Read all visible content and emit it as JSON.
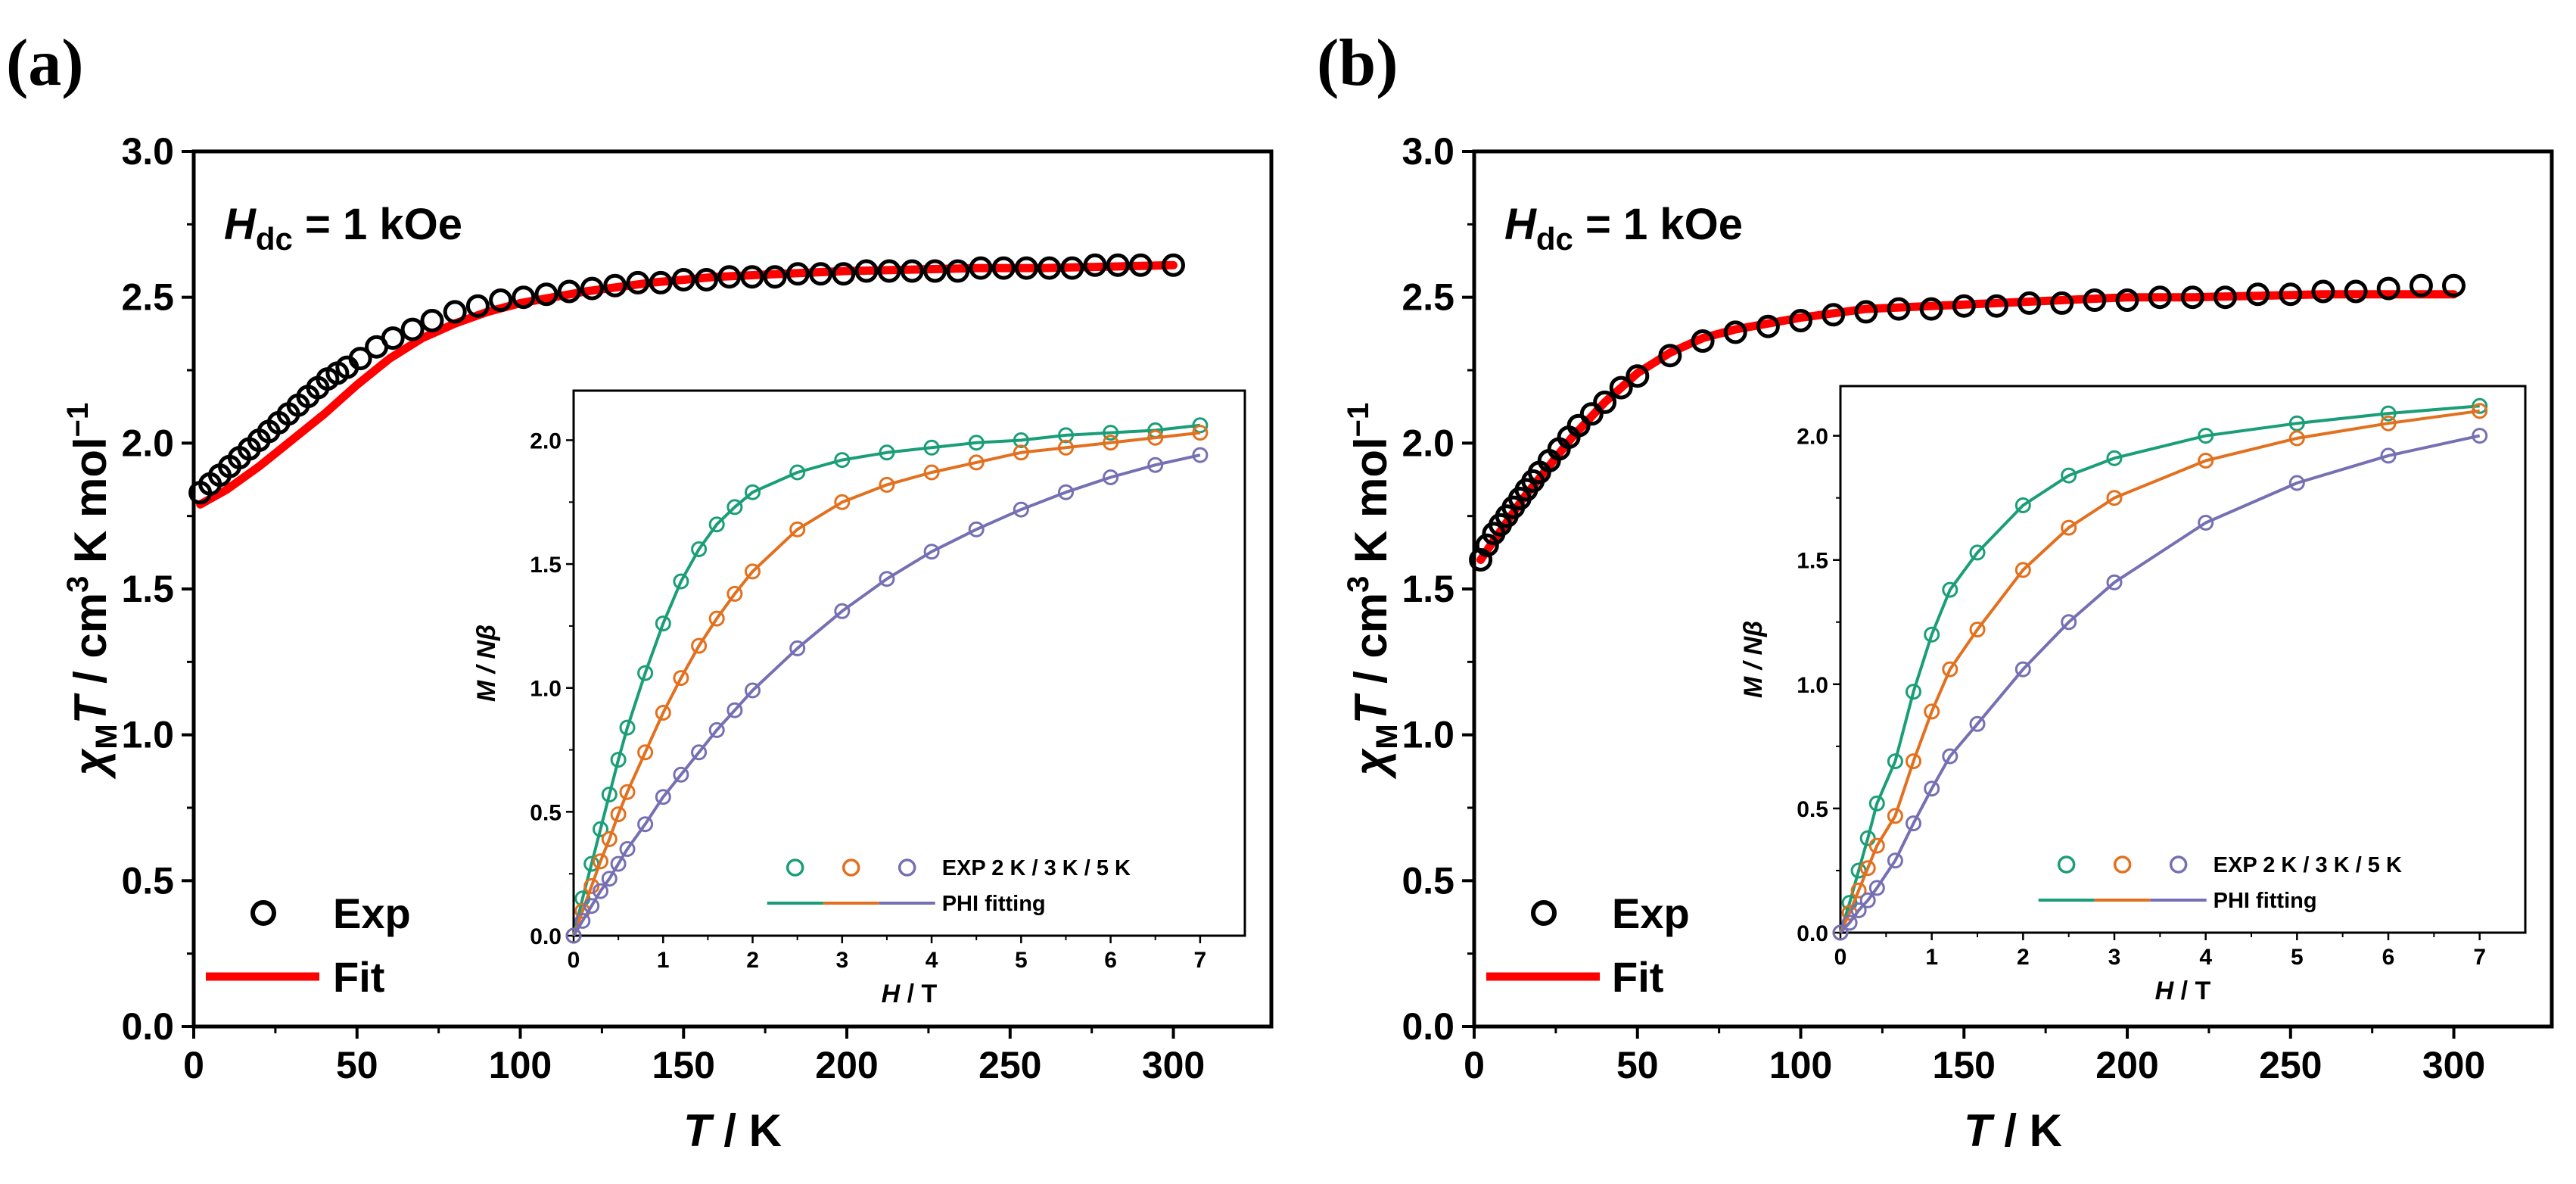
{
  "colors": {
    "exp_marker": "#000000",
    "fit_line": "#ff0000",
    "T2": "#1a9e77",
    "T3": "#e2701e",
    "T5": "#7570b3"
  },
  "chart_data": [
    {
      "panel": "(a)",
      "type": "scatter",
      "annotation": {
        "symbol": "H",
        "sub": "dc",
        "rest": " = 1 kOe"
      },
      "xlabel": {
        "var": "T",
        "rest": " / K"
      },
      "ylabel": {
        "chi": "χ",
        "chi_sub": "M",
        "var": "T",
        "rest1": " / cm",
        "sup": "3",
        "rest2": " K mol",
        "sup2": "−1"
      },
      "xlim": [
        0,
        330
      ],
      "ylim": [
        0,
        3.0
      ],
      "xticks": [
        "0",
        "50",
        "100",
        "150",
        "200",
        "250",
        "300"
      ],
      "yticks": [
        "0.0",
        "0.5",
        "1.0",
        "1.5",
        "2.0",
        "2.5",
        "3.0"
      ],
      "legend": {
        "exp": "Exp",
        "fit": "Fit"
      },
      "series": [
        {
          "name": "Exp",
          "x": [
            2,
            5,
            8,
            11,
            14,
            17,
            20,
            23,
            26,
            29,
            32,
            35,
            38,
            41,
            44,
            47,
            51,
            56,
            61,
            67,
            73,
            80,
            87,
            94,
            101,
            108,
            115,
            122,
            129,
            136,
            143,
            150,
            157,
            164,
            171,
            178,
            185,
            192,
            199,
            206,
            213,
            220,
            227,
            234,
            241,
            248,
            255,
            262,
            269,
            276,
            283,
            290,
            300
          ],
          "y": [
            1.83,
            1.86,
            1.89,
            1.92,
            1.95,
            1.98,
            2.01,
            2.04,
            2.07,
            2.1,
            2.13,
            2.16,
            2.19,
            2.22,
            2.24,
            2.26,
            2.29,
            2.33,
            2.36,
            2.39,
            2.42,
            2.45,
            2.47,
            2.49,
            2.5,
            2.51,
            2.52,
            2.53,
            2.54,
            2.55,
            2.55,
            2.56,
            2.56,
            2.57,
            2.57,
            2.57,
            2.58,
            2.58,
            2.58,
            2.59,
            2.59,
            2.59,
            2.59,
            2.59,
            2.6,
            2.6,
            2.6,
            2.6,
            2.6,
            2.61,
            2.61,
            2.61,
            2.61
          ]
        },
        {
          "name": "Fit",
          "x": [
            2,
            10,
            20,
            30,
            40,
            50,
            60,
            70,
            80,
            90,
            100,
            110,
            120,
            140,
            160,
            180,
            200,
            220,
            240,
            260,
            280,
            300
          ],
          "y": [
            1.79,
            1.84,
            1.92,
            2.01,
            2.1,
            2.2,
            2.29,
            2.36,
            2.41,
            2.45,
            2.48,
            2.5,
            2.52,
            2.55,
            2.57,
            2.58,
            2.59,
            2.595,
            2.6,
            2.6,
            2.605,
            2.61
          ]
        }
      ],
      "inset": {
        "type": "line",
        "xlabel": {
          "var": "H",
          "rest": " / T"
        },
        "ylabel": {
          "var1": "M",
          "rest": " / N",
          "var2": "β"
        },
        "xlim": [
          0,
          7.5
        ],
        "ylim": [
          0,
          2.2
        ],
        "xticks": [
          "0",
          "1",
          "2",
          "3",
          "4",
          "5",
          "6",
          "7"
        ],
        "yticks": [
          "0.0",
          "0.5",
          "1.0",
          "1.5",
          "2.0"
        ],
        "legend": {
          "exp": "EXP 2 K / 3 K / 5 K",
          "fit": "PHI fitting"
        },
        "series": [
          {
            "name": "2 K",
            "x": [
              0,
              0.1,
              0.2,
              0.3,
              0.4,
              0.5,
              0.6,
              0.8,
              1.0,
              1.2,
              1.4,
              1.6,
              1.8,
              2.0,
              2.5,
              3.0,
              3.5,
              4.0,
              4.5,
              5.0,
              5.5,
              6.0,
              6.5,
              7.0
            ],
            "y": [
              0.0,
              0.15,
              0.29,
              0.43,
              0.57,
              0.71,
              0.84,
              1.06,
              1.26,
              1.43,
              1.56,
              1.66,
              1.73,
              1.79,
              1.87,
              1.92,
              1.95,
              1.97,
              1.99,
              2.0,
              2.02,
              2.03,
              2.04,
              2.06
            ]
          },
          {
            "name": "3 K",
            "x": [
              0,
              0.1,
              0.2,
              0.3,
              0.4,
              0.5,
              0.6,
              0.8,
              1.0,
              1.2,
              1.4,
              1.6,
              1.8,
              2.0,
              2.5,
              3.0,
              3.5,
              4.0,
              4.5,
              5.0,
              5.5,
              6.0,
              6.5,
              7.0
            ],
            "y": [
              0.0,
              0.1,
              0.2,
              0.3,
              0.39,
              0.49,
              0.58,
              0.74,
              0.9,
              1.04,
              1.17,
              1.28,
              1.38,
              1.47,
              1.64,
              1.75,
              1.82,
              1.87,
              1.91,
              1.95,
              1.97,
              1.99,
              2.01,
              2.03
            ]
          },
          {
            "name": "5 K",
            "x": [
              0,
              0.1,
              0.2,
              0.3,
              0.4,
              0.5,
              0.6,
              0.8,
              1.0,
              1.2,
              1.4,
              1.6,
              1.8,
              2.0,
              2.5,
              3.0,
              3.5,
              4.0,
              4.5,
              5.0,
              5.5,
              6.0,
              6.5,
              7.0
            ],
            "y": [
              0.0,
              0.06,
              0.12,
              0.18,
              0.23,
              0.29,
              0.35,
              0.45,
              0.56,
              0.65,
              0.74,
              0.83,
              0.91,
              0.99,
              1.16,
              1.31,
              1.44,
              1.55,
              1.64,
              1.72,
              1.79,
              1.85,
              1.9,
              1.94
            ]
          }
        ]
      }
    },
    {
      "panel": "(b)",
      "type": "scatter",
      "annotation": {
        "symbol": "H",
        "sub": "dc",
        "rest": " = 1 kOe"
      },
      "xlabel": {
        "var": "T",
        "rest": " / K"
      },
      "ylabel": {
        "chi": "χ",
        "chi_sub": "M",
        "var": "T",
        "rest1": " / cm",
        "sup": "3",
        "rest2": " K mol",
        "sup2": "−1"
      },
      "xlim": [
        0,
        330
      ],
      "ylim": [
        0,
        3.0
      ],
      "xticks": [
        "0",
        "50",
        "100",
        "150",
        "200",
        "250",
        "300"
      ],
      "yticks": [
        "0.0",
        "0.5",
        "1.0",
        "1.5",
        "2.0",
        "2.5",
        "3.0"
      ],
      "legend": {
        "exp": "Exp",
        "fit": "Fit"
      },
      "series": [
        {
          "name": "Exp",
          "x": [
            2,
            4,
            6,
            8,
            10,
            12,
            14,
            16,
            18,
            20,
            23,
            26,
            29,
            32,
            36,
            40,
            45,
            50,
            60,
            70,
            80,
            90,
            100,
            110,
            120,
            130,
            140,
            150,
            160,
            170,
            180,
            190,
            200,
            210,
            220,
            230,
            240,
            250,
            260,
            270,
            280,
            290,
            300
          ],
          "y": [
            1.6,
            1.65,
            1.69,
            1.72,
            1.75,
            1.78,
            1.81,
            1.84,
            1.87,
            1.9,
            1.94,
            1.98,
            2.02,
            2.06,
            2.1,
            2.14,
            2.19,
            2.23,
            2.3,
            2.35,
            2.38,
            2.4,
            2.42,
            2.44,
            2.45,
            2.46,
            2.46,
            2.47,
            2.47,
            2.48,
            2.48,
            2.49,
            2.49,
            2.5,
            2.5,
            2.5,
            2.51,
            2.51,
            2.52,
            2.52,
            2.53,
            2.54,
            2.54
          ]
        },
        {
          "name": "Fit",
          "x": [
            2,
            5,
            10,
            15,
            20,
            25,
            30,
            40,
            50,
            60,
            70,
            80,
            90,
            100,
            120,
            140,
            160,
            180,
            200,
            220,
            240,
            260,
            280,
            300
          ],
          "y": [
            1.6,
            1.65,
            1.73,
            1.81,
            1.88,
            1.95,
            2.02,
            2.14,
            2.24,
            2.31,
            2.36,
            2.39,
            2.41,
            2.43,
            2.46,
            2.47,
            2.48,
            2.49,
            2.5,
            2.5,
            2.505,
            2.51,
            2.51,
            2.51
          ]
        }
      ],
      "inset": {
        "type": "line",
        "xlabel": {
          "var": "H",
          "rest": " / T"
        },
        "ylabel": {
          "var1": "M",
          "rest": " / N",
          "var2": "β"
        },
        "xlim": [
          0,
          7.5
        ],
        "ylim": [
          0,
          2.2
        ],
        "xticks": [
          "0",
          "1",
          "2",
          "3",
          "4",
          "5",
          "6",
          "7"
        ],
        "yticks": [
          "0.0",
          "0.5",
          "1.0",
          "1.5",
          "2.0"
        ],
        "legend": {
          "exp": "EXP 2 K / 3 K / 5 K",
          "fit": "PHI fitting"
        },
        "series": [
          {
            "name": "2 K",
            "x": [
              0,
              0.1,
              0.2,
              0.3,
              0.4,
              0.6,
              0.8,
              1.0,
              1.2,
              1.5,
              2.0,
              2.5,
              3.0,
              4.0,
              5.0,
              6.0,
              7.0
            ],
            "y": [
              0.0,
              0.12,
              0.25,
              0.38,
              0.52,
              0.69,
              0.97,
              1.2,
              1.38,
              1.53,
              1.72,
              1.84,
              1.91,
              2.0,
              2.05,
              2.09,
              2.12
            ]
          },
          {
            "name": "3 K",
            "x": [
              0,
              0.1,
              0.2,
              0.3,
              0.4,
              0.6,
              0.8,
              1.0,
              1.2,
              1.5,
              2.0,
              2.5,
              3.0,
              4.0,
              5.0,
              6.0,
              7.0
            ],
            "y": [
              0.0,
              0.08,
              0.17,
              0.26,
              0.35,
              0.47,
              0.69,
              0.89,
              1.06,
              1.22,
              1.46,
              1.63,
              1.75,
              1.9,
              1.99,
              2.05,
              2.1
            ]
          },
          {
            "name": "5 K",
            "x": [
              0,
              0.1,
              0.2,
              0.3,
              0.4,
              0.6,
              0.8,
              1.0,
              1.2,
              1.5,
              2.0,
              2.5,
              3.0,
              4.0,
              5.0,
              6.0,
              7.0
            ],
            "y": [
              0.0,
              0.04,
              0.09,
              0.13,
              0.18,
              0.29,
              0.44,
              0.58,
              0.71,
              0.84,
              1.06,
              1.25,
              1.41,
              1.65,
              1.81,
              1.92,
              2.0
            ]
          }
        ]
      }
    }
  ]
}
